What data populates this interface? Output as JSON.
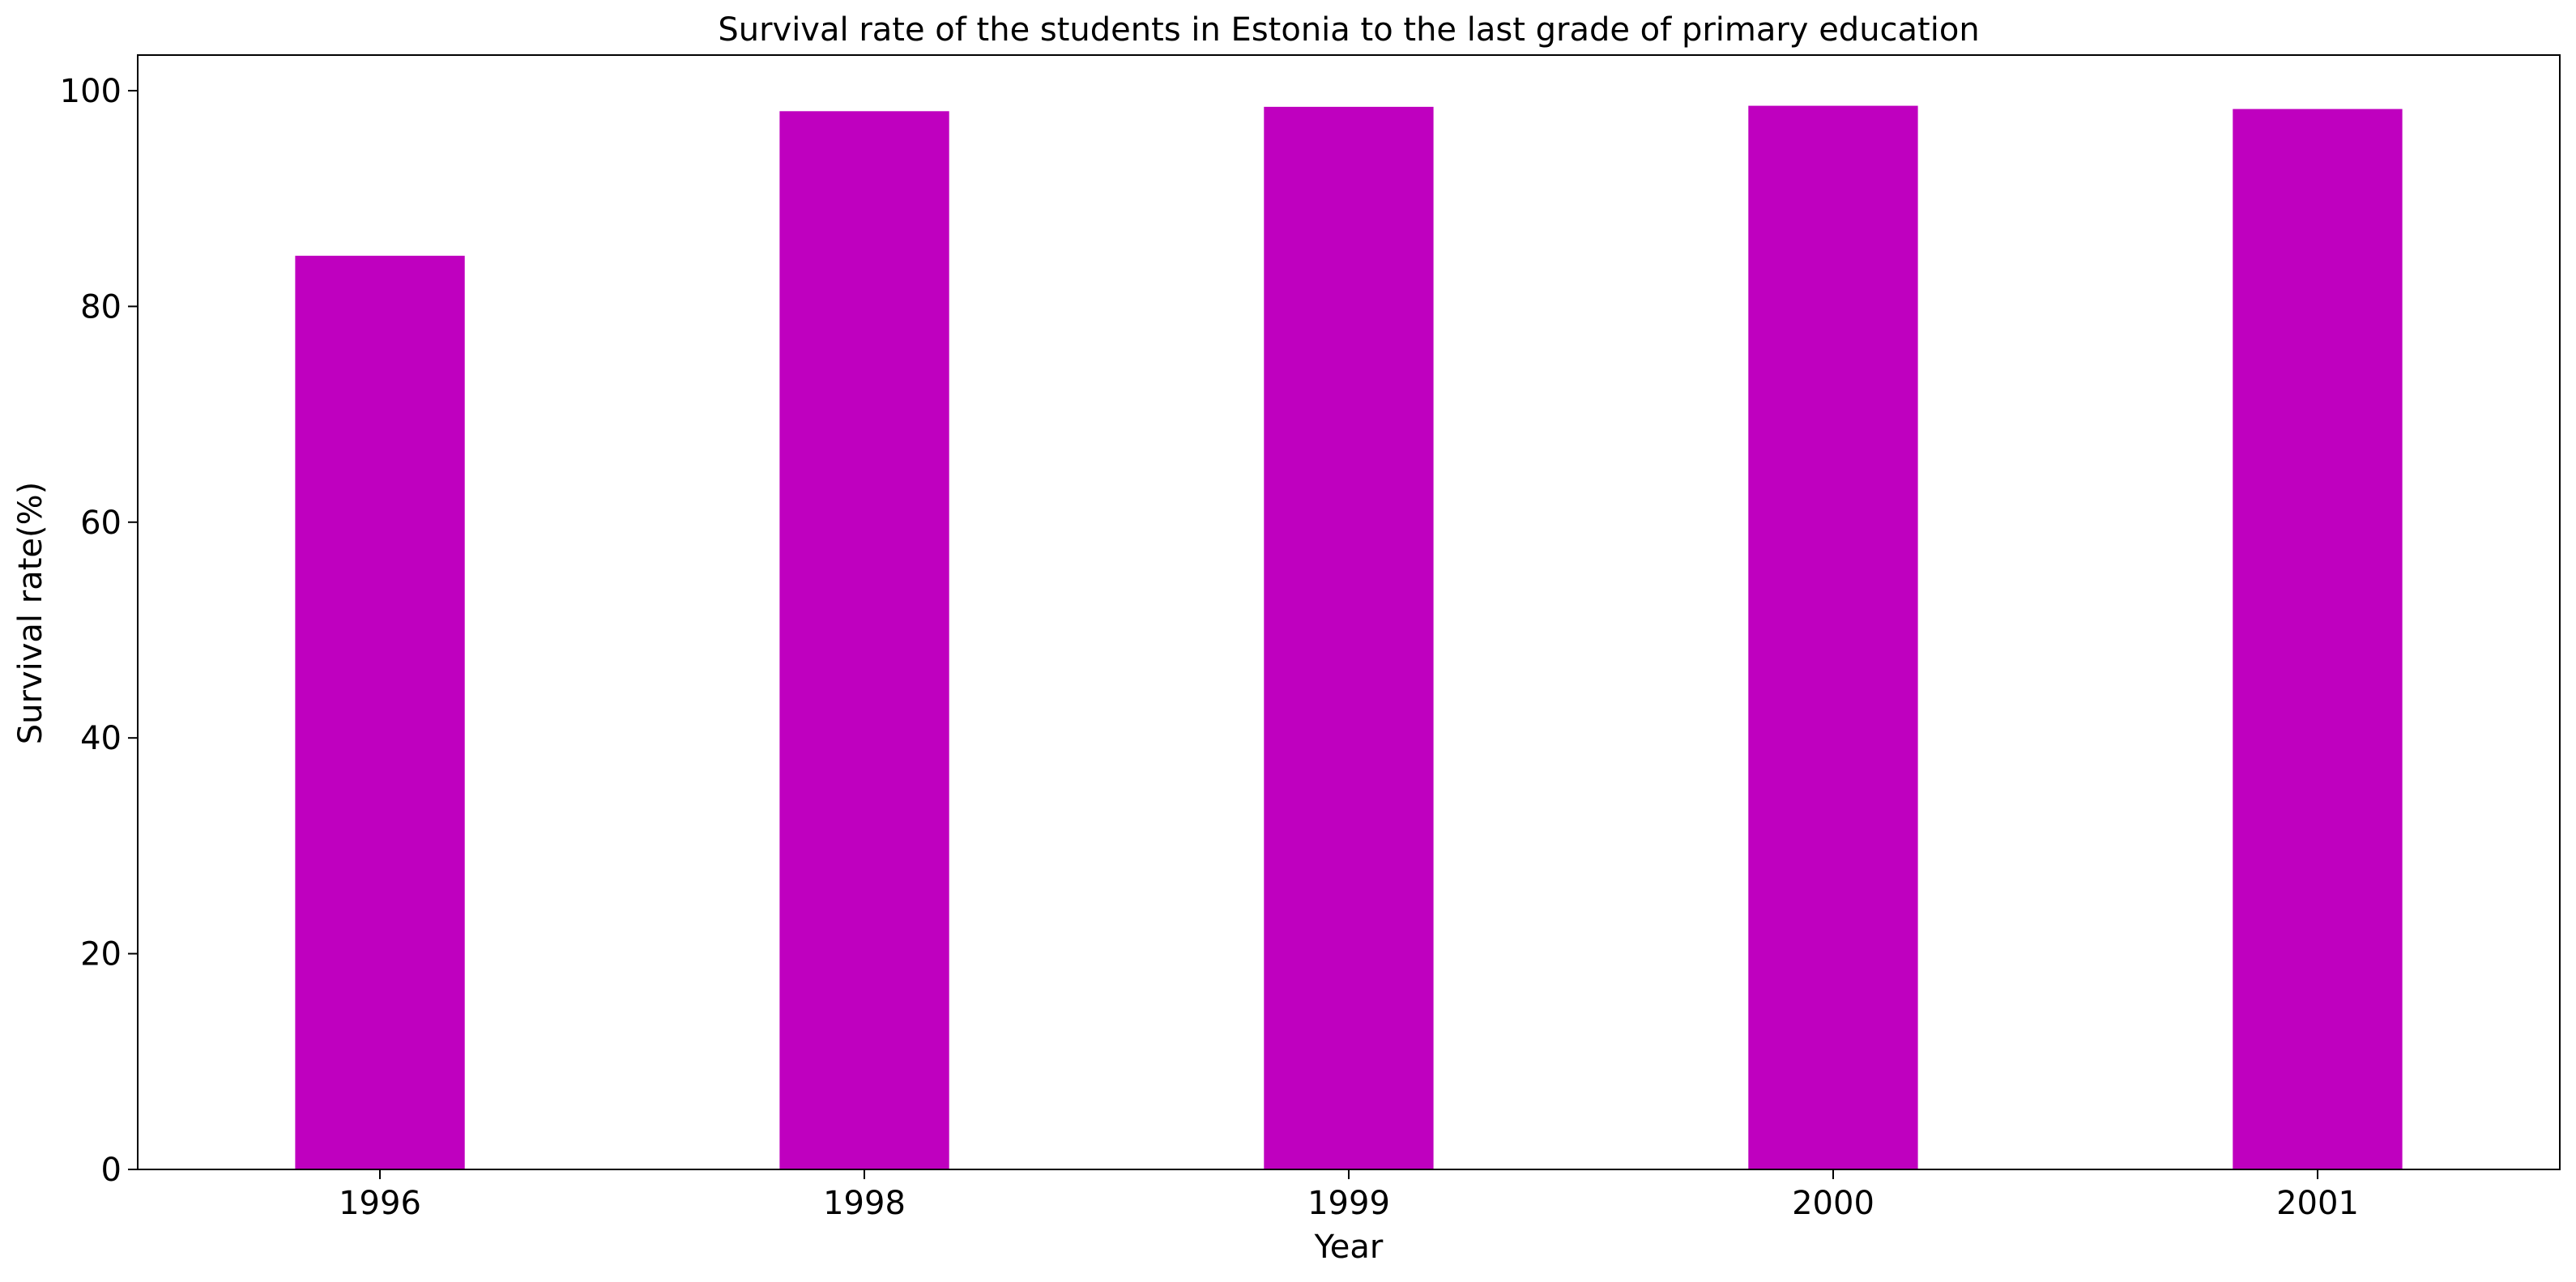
{
  "chart_data": {
    "type": "bar",
    "title": "Survival rate of the students in Estonia to the last grade of primary education",
    "xlabel": "Year",
    "ylabel": "Survival rate(%)",
    "categories": [
      "1996",
      "1998",
      "1999",
      "2000",
      "2001"
    ],
    "values": [
      84.7,
      98.1,
      98.5,
      98.6,
      98.3
    ],
    "ylim": [
      0,
      103.3
    ],
    "yticks": [
      0,
      20,
      40,
      60,
      80,
      100
    ],
    "bar_color": "#bf00bf",
    "grid": false,
    "legend": "none"
  }
}
